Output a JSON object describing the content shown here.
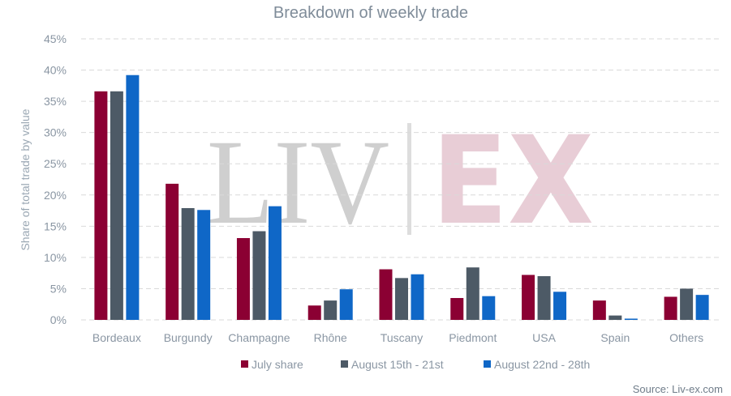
{
  "chart_data": {
    "type": "bar",
    "title": "Breakdown of weekly trade",
    "ylabel": "Share of total trade by value",
    "xlabel": "",
    "ylim": [
      0,
      45
    ],
    "yticks": [
      "0%",
      "5%",
      "10%",
      "15%",
      "20%",
      "25%",
      "30%",
      "35%",
      "40%",
      "45%"
    ],
    "categories": [
      "Bordeaux",
      "Burgundy",
      "Champagne",
      "Rhône",
      "Tuscany",
      "Piedmont",
      "USA",
      "Spain",
      "Others"
    ],
    "series": [
      {
        "name": "July share",
        "color": "#8b0033",
        "values": [
          36.6,
          21.8,
          13.1,
          2.3,
          8.1,
          3.5,
          7.2,
          3.1,
          3.7
        ]
      },
      {
        "name": "August 15th - 21st",
        "color": "#4d5a66",
        "values": [
          36.6,
          17.9,
          14.2,
          3.1,
          6.7,
          8.4,
          7.0,
          0.7,
          5.0
        ]
      },
      {
        "name": "August 22nd - 28th",
        "color": "#0f67c7",
        "values": [
          39.2,
          17.6,
          18.2,
          4.9,
          7.3,
          3.8,
          4.5,
          0.2,
          4.0
        ]
      }
    ],
    "grid": true,
    "legend_position": "bottom"
  },
  "watermark": {
    "left": "LIV",
    "right": "EX"
  },
  "source": "Source: Liv-ex.com"
}
